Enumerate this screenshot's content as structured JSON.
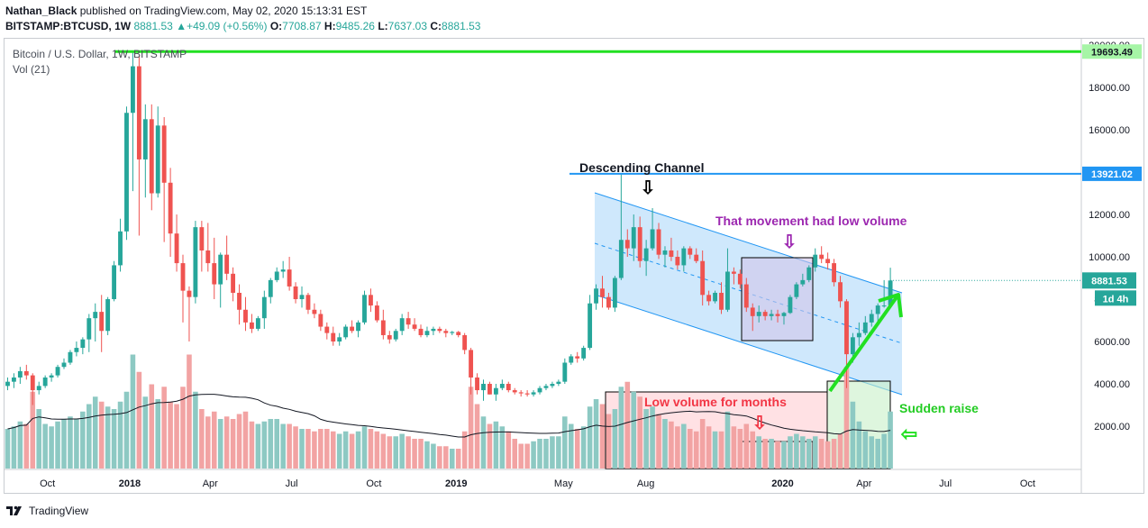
{
  "header": {
    "author": "Nathan_Black",
    "published_text": "published on TradingView.com, May 02, 2020 15:13:31 EST",
    "symbol": "BITSTAMP:BTCUSD, 1W",
    "price": "8881.53",
    "change": "+49.09 (+0.56%)",
    "o_label": "O:",
    "o_value": "7708.87",
    "h_label": "H:",
    "h_value": "9485.26",
    "l_label": "L:",
    "l_value": "7637.03",
    "c_label": "C:",
    "c_value": "8881.53"
  },
  "legend": {
    "title": "Bitcoin / U.S. Dollar, 1W, BITSTAMP",
    "volume": "Vol (21)"
  },
  "footer": {
    "brand": "TradingView"
  },
  "colors": {
    "up": "#26a69a",
    "down": "#ef5350",
    "vol_up": "#8dc9c3",
    "vol_down": "#f2a3a3",
    "green_line": "#22e022",
    "blue_line": "#2196f3",
    "channel_fill": "#bbdefb",
    "purple": "#9c27b0",
    "red_text": "#f23645",
    "arrow_green": "#22e022"
  },
  "annotations": {
    "descending_channel": "Descending Channel",
    "low_volume_movement": "That movement had low volume",
    "low_volume_months": "Low volume for months",
    "sudden_raise": "Sudden raise"
  },
  "price_labels": {
    "high_line": "19693.49",
    "resistance_line": "13921.02",
    "current": "8881.53",
    "countdown": "1d 4h"
  },
  "chart_data": {
    "type": "candlestick",
    "title": "Bitcoin / U.S. Dollar, 1W, BITSTAMP",
    "y_ticks": [
      "2000.00",
      "4000.00",
      "6000.00",
      "8000.00",
      "10000.00",
      "12000.00",
      "14000.00",
      "16000.00",
      "18000.00",
      "20000.00"
    ],
    "y_range": [
      0,
      20300
    ],
    "x_ticks": [
      "Oct",
      "2018",
      "Apr",
      "Jul",
      "Oct",
      "2019",
      "May",
      "Aug",
      "2020",
      "Apr",
      "Jul",
      "Oct"
    ],
    "x_range": [
      "2017-08-14",
      "2020-11-30"
    ],
    "x_tick_dates": [
      "2017-10-01",
      "2018-01-01",
      "2018-04-01",
      "2018-07-01",
      "2018-10-01",
      "2019-01-01",
      "2019-05-01",
      "2019-08-01",
      "2020-01-01",
      "2020-04-01",
      "2020-07-01",
      "2020-10-01"
    ],
    "horizontal_lines": [
      {
        "label": "19693.49",
        "value": 19693.49,
        "color": "#22e022"
      },
      {
        "label": "13921.02",
        "value": 13921.02,
        "color": "#2196f3"
      }
    ],
    "candles": [
      {
        "o": 3900,
        "h": 4300,
        "l": 3700,
        "c": 4100,
        "v": 1600
      },
      {
        "o": 4100,
        "h": 4500,
        "l": 3800,
        "c": 4300,
        "v": 1700
      },
      {
        "o": 4300,
        "h": 4800,
        "l": 4000,
        "c": 4600,
        "v": 1900
      },
      {
        "o": 4600,
        "h": 4900,
        "l": 4200,
        "c": 4400,
        "v": 1800
      },
      {
        "o": 4400,
        "h": 4500,
        "l": 3000,
        "c": 3700,
        "v": 3100
      },
      {
        "o": 3700,
        "h": 4100,
        "l": 3500,
        "c": 3900,
        "v": 2400
      },
      {
        "o": 3900,
        "h": 4400,
        "l": 3800,
        "c": 4300,
        "v": 1800
      },
      {
        "o": 4300,
        "h": 4500,
        "l": 4100,
        "c": 4400,
        "v": 1700
      },
      {
        "o": 4400,
        "h": 4900,
        "l": 4300,
        "c": 4800,
        "v": 1900
      },
      {
        "o": 4800,
        "h": 5200,
        "l": 4700,
        "c": 5000,
        "v": 2000
      },
      {
        "o": 5000,
        "h": 5600,
        "l": 4900,
        "c": 5500,
        "v": 2100
      },
      {
        "o": 5500,
        "h": 6000,
        "l": 5300,
        "c": 5700,
        "v": 2000
      },
      {
        "o": 5700,
        "h": 6200,
        "l": 5400,
        "c": 6100,
        "v": 2300
      },
      {
        "o": 6100,
        "h": 7300,
        "l": 5500,
        "c": 7100,
        "v": 2600
      },
      {
        "o": 7100,
        "h": 7800,
        "l": 6000,
        "c": 7400,
        "v": 2900
      },
      {
        "o": 7400,
        "h": 8200,
        "l": 5500,
        "c": 6500,
        "v": 2700
      },
      {
        "o": 6500,
        "h": 8100,
        "l": 6300,
        "c": 8000,
        "v": 2500
      },
      {
        "o": 8000,
        "h": 9800,
        "l": 7900,
        "c": 9600,
        "v": 2400
      },
      {
        "o": 9600,
        "h": 11800,
        "l": 9300,
        "c": 11200,
        "v": 2700
      },
      {
        "o": 11200,
        "h": 17100,
        "l": 10800,
        "c": 16800,
        "v": 3100
      },
      {
        "o": 16800,
        "h": 19693,
        "l": 13100,
        "c": 19000,
        "v": 4600
      },
      {
        "o": 19000,
        "h": 19500,
        "l": 11000,
        "c": 14600,
        "v": 3900
      },
      {
        "o": 14600,
        "h": 17200,
        "l": 12800,
        "c": 16500,
        "v": 2900
      },
      {
        "o": 16500,
        "h": 17200,
        "l": 12200,
        "c": 13000,
        "v": 3400
      },
      {
        "o": 13000,
        "h": 17100,
        "l": 12800,
        "c": 16200,
        "v": 2800
      },
      {
        "o": 16200,
        "h": 16600,
        "l": 10700,
        "c": 13500,
        "v": 3300
      },
      {
        "o": 13500,
        "h": 14200,
        "l": 10000,
        "c": 11100,
        "v": 2700
      },
      {
        "o": 11100,
        "h": 12000,
        "l": 9300,
        "c": 9700,
        "v": 2600
      },
      {
        "o": 9700,
        "h": 10100,
        "l": 6900,
        "c": 8400,
        "v": 3300
      },
      {
        "o": 8400,
        "h": 8600,
        "l": 6000,
        "c": 8100,
        "v": 4600
      },
      {
        "o": 8100,
        "h": 11700,
        "l": 7800,
        "c": 11400,
        "v": 3100
      },
      {
        "o": 11400,
        "h": 11700,
        "l": 9300,
        "c": 10300,
        "v": 2400
      },
      {
        "o": 10300,
        "h": 11600,
        "l": 9300,
        "c": 9700,
        "v": 2100
      },
      {
        "o": 9700,
        "h": 10900,
        "l": 8000,
        "c": 8700,
        "v": 2300
      },
      {
        "o": 8700,
        "h": 10200,
        "l": 7600,
        "c": 10100,
        "v": 2000
      },
      {
        "o": 10100,
        "h": 11000,
        "l": 8900,
        "c": 9200,
        "v": 2100
      },
      {
        "o": 9200,
        "h": 9500,
        "l": 7900,
        "c": 8300,
        "v": 2000
      },
      {
        "o": 8300,
        "h": 8700,
        "l": 6800,
        "c": 7500,
        "v": 2200
      },
      {
        "o": 7500,
        "h": 8100,
        "l": 6500,
        "c": 6900,
        "v": 2300
      },
      {
        "o": 6900,
        "h": 7300,
        "l": 6400,
        "c": 6600,
        "v": 1900
      },
      {
        "o": 6600,
        "h": 7200,
        "l": 6500,
        "c": 7100,
        "v": 1800
      },
      {
        "o": 7100,
        "h": 8400,
        "l": 6600,
        "c": 8100,
        "v": 1900
      },
      {
        "o": 8100,
        "h": 9000,
        "l": 7800,
        "c": 8900,
        "v": 2000
      },
      {
        "o": 8900,
        "h": 9500,
        "l": 8800,
        "c": 9300,
        "v": 2000
      },
      {
        "o": 9300,
        "h": 9800,
        "l": 9000,
        "c": 9400,
        "v": 1800
      },
      {
        "o": 9400,
        "h": 10000,
        "l": 8400,
        "c": 8600,
        "v": 1800
      },
      {
        "o": 8600,
        "h": 8800,
        "l": 7800,
        "c": 8000,
        "v": 1700
      },
      {
        "o": 8000,
        "h": 8600,
        "l": 7600,
        "c": 8200,
        "v": 1600
      },
      {
        "o": 8200,
        "h": 8300,
        "l": 7300,
        "c": 7500,
        "v": 1600
      },
      {
        "o": 7500,
        "h": 7800,
        "l": 7100,
        "c": 7300,
        "v": 1500
      },
      {
        "o": 7300,
        "h": 7500,
        "l": 6500,
        "c": 6700,
        "v": 1600
      },
      {
        "o": 6700,
        "h": 6900,
        "l": 6100,
        "c": 6400,
        "v": 1600
      },
      {
        "o": 6400,
        "h": 6700,
        "l": 5800,
        "c": 6000,
        "v": 1500
      },
      {
        "o": 6000,
        "h": 6400,
        "l": 5800,
        "c": 6200,
        "v": 1400
      },
      {
        "o": 6200,
        "h": 6800,
        "l": 6100,
        "c": 6700,
        "v": 1500
      },
      {
        "o": 6700,
        "h": 7000,
        "l": 6400,
        "c": 6500,
        "v": 1400
      },
      {
        "o": 6500,
        "h": 7000,
        "l": 6200,
        "c": 6900,
        "v": 1500
      },
      {
        "o": 6900,
        "h": 8400,
        "l": 6800,
        "c": 8200,
        "v": 1700
      },
      {
        "o": 8200,
        "h": 8500,
        "l": 7400,
        "c": 7700,
        "v": 1600
      },
      {
        "o": 7700,
        "h": 7900,
        "l": 6900,
        "c": 7000,
        "v": 1500
      },
      {
        "o": 7000,
        "h": 7500,
        "l": 6100,
        "c": 6300,
        "v": 1400
      },
      {
        "o": 6300,
        "h": 6500,
        "l": 5900,
        "c": 6100,
        "v": 1300
      },
      {
        "o": 6100,
        "h": 6600,
        "l": 6000,
        "c": 6500,
        "v": 1300
      },
      {
        "o": 6500,
        "h": 7300,
        "l": 6300,
        "c": 7100,
        "v": 1400
      },
      {
        "o": 7100,
        "h": 7400,
        "l": 6600,
        "c": 6800,
        "v": 1300
      },
      {
        "o": 6800,
        "h": 7100,
        "l": 6500,
        "c": 6600,
        "v": 1200
      },
      {
        "o": 6600,
        "h": 6800,
        "l": 6200,
        "c": 6300,
        "v": 1200
      },
      {
        "o": 6300,
        "h": 6700,
        "l": 6200,
        "c": 6500,
        "v": 1100
      },
      {
        "o": 6500,
        "h": 6700,
        "l": 6300,
        "c": 6600,
        "v": 1000
      },
      {
        "o": 6600,
        "h": 6700,
        "l": 6400,
        "c": 6500,
        "v": 900
      },
      {
        "o": 6500,
        "h": 6600,
        "l": 6200,
        "c": 6400,
        "v": 900
      },
      {
        "o": 6400,
        "h": 6500,
        "l": 6300,
        "c": 6450,
        "v": 800
      },
      {
        "o": 6450,
        "h": 6500,
        "l": 6200,
        "c": 6300,
        "v": 800
      },
      {
        "o": 6300,
        "h": 6400,
        "l": 5400,
        "c": 5600,
        "v": 1500
      },
      {
        "o": 5600,
        "h": 5700,
        "l": 3500,
        "c": 4300,
        "v": 3300
      },
      {
        "o": 4300,
        "h": 4500,
        "l": 3500,
        "c": 3700,
        "v": 2600
      },
      {
        "o": 3700,
        "h": 4200,
        "l": 3200,
        "c": 4000,
        "v": 2100
      },
      {
        "o": 4000,
        "h": 4100,
        "l": 3500,
        "c": 3500,
        "v": 1800
      },
      {
        "o": 3500,
        "h": 4000,
        "l": 3200,
        "c": 3800,
        "v": 1900
      },
      {
        "o": 3800,
        "h": 4200,
        "l": 3700,
        "c": 4000,
        "v": 1700
      },
      {
        "o": 4000,
        "h": 4100,
        "l": 3600,
        "c": 3700,
        "v": 1500
      },
      {
        "o": 3700,
        "h": 3800,
        "l": 3500,
        "c": 3600,
        "v": 1200
      },
      {
        "o": 3600,
        "h": 3700,
        "l": 3400,
        "c": 3550,
        "v": 1000
      },
      {
        "o": 3550,
        "h": 3700,
        "l": 3400,
        "c": 3500,
        "v": 1000
      },
      {
        "o": 3500,
        "h": 3700,
        "l": 3400,
        "c": 3600,
        "v": 1100
      },
      {
        "o": 3600,
        "h": 3900,
        "l": 3500,
        "c": 3800,
        "v": 1200
      },
      {
        "o": 3800,
        "h": 4000,
        "l": 3700,
        "c": 3900,
        "v": 1200
      },
      {
        "o": 3900,
        "h": 4100,
        "l": 3800,
        "c": 4000,
        "v": 1300
      },
      {
        "o": 4000,
        "h": 4200,
        "l": 3900,
        "c": 4100,
        "v": 1300
      },
      {
        "o": 4100,
        "h": 5200,
        "l": 4000,
        "c": 5000,
        "v": 2100
      },
      {
        "o": 5000,
        "h": 5400,
        "l": 4900,
        "c": 5300,
        "v": 1800
      },
      {
        "o": 5300,
        "h": 5500,
        "l": 5000,
        "c": 5200,
        "v": 1600
      },
      {
        "o": 5200,
        "h": 5800,
        "l": 5100,
        "c": 5700,
        "v": 1700
      },
      {
        "o": 5700,
        "h": 8200,
        "l": 5600,
        "c": 7800,
        "v": 2500
      },
      {
        "o": 7800,
        "h": 8700,
        "l": 7500,
        "c": 8500,
        "v": 2800
      },
      {
        "o": 8500,
        "h": 9100,
        "l": 7600,
        "c": 8100,
        "v": 2600
      },
      {
        "o": 8100,
        "h": 8300,
        "l": 7500,
        "c": 7600,
        "v": 2200
      },
      {
        "o": 7600,
        "h": 9100,
        "l": 7400,
        "c": 9000,
        "v": 2400
      },
      {
        "o": 9000,
        "h": 13900,
        "l": 8900,
        "c": 10800,
        "v": 3300
      },
      {
        "o": 10800,
        "h": 11300,
        "l": 10000,
        "c": 10400,
        "v": 3500
      },
      {
        "o": 10400,
        "h": 12000,
        "l": 9800,
        "c": 11400,
        "v": 3100
      },
      {
        "o": 11400,
        "h": 11900,
        "l": 9500,
        "c": 9800,
        "v": 2900
      },
      {
        "o": 9800,
        "h": 10800,
        "l": 9100,
        "c": 10400,
        "v": 2400
      },
      {
        "o": 10400,
        "h": 12300,
        "l": 10300,
        "c": 11300,
        "v": 2500
      },
      {
        "o": 11300,
        "h": 11600,
        "l": 9900,
        "c": 10100,
        "v": 2200
      },
      {
        "o": 10100,
        "h": 10500,
        "l": 9500,
        "c": 10300,
        "v": 2000
      },
      {
        "o": 10300,
        "h": 10900,
        "l": 9800,
        "c": 10000,
        "v": 1900
      },
      {
        "o": 10000,
        "h": 10300,
        "l": 9400,
        "c": 9600,
        "v": 1700
      },
      {
        "o": 9600,
        "h": 10500,
        "l": 9300,
        "c": 10400,
        "v": 1800
      },
      {
        "o": 10400,
        "h": 10500,
        "l": 9900,
        "c": 10100,
        "v": 1600
      },
      {
        "o": 10100,
        "h": 10400,
        "l": 9700,
        "c": 9800,
        "v": 1500
      },
      {
        "o": 9800,
        "h": 10300,
        "l": 7700,
        "c": 8200,
        "v": 2000
      },
      {
        "o": 8200,
        "h": 8400,
        "l": 7700,
        "c": 7900,
        "v": 1700
      },
      {
        "o": 7900,
        "h": 8400,
        "l": 7800,
        "c": 8300,
        "v": 1500
      },
      {
        "o": 8300,
        "h": 8800,
        "l": 7300,
        "c": 7500,
        "v": 1500
      },
      {
        "o": 7500,
        "h": 10400,
        "l": 7400,
        "c": 9300,
        "v": 2300
      },
      {
        "o": 9300,
        "h": 9500,
        "l": 8700,
        "c": 9200,
        "v": 1700
      },
      {
        "o": 9200,
        "h": 9400,
        "l": 8500,
        "c": 8700,
        "v": 1600
      },
      {
        "o": 8700,
        "h": 9000,
        "l": 7400,
        "c": 7600,
        "v": 1800
      },
      {
        "o": 7600,
        "h": 7800,
        "l": 6500,
        "c": 7200,
        "v": 1500
      },
      {
        "o": 7200,
        "h": 7700,
        "l": 6900,
        "c": 7400,
        "v": 1300
      },
      {
        "o": 7400,
        "h": 7500,
        "l": 7000,
        "c": 7200,
        "v": 1200
      },
      {
        "o": 7200,
        "h": 7500,
        "l": 7000,
        "c": 7300,
        "v": 1200
      },
      {
        "o": 7300,
        "h": 7500,
        "l": 6900,
        "c": 7200,
        "v": 1100
      },
      {
        "o": 7200,
        "h": 7400,
        "l": 6800,
        "c": 7350,
        "v": 1100
      },
      {
        "o": 7350,
        "h": 8200,
        "l": 7300,
        "c": 8100,
        "v": 1300
      },
      {
        "o": 8100,
        "h": 8800,
        "l": 8000,
        "c": 8700,
        "v": 1400
      },
      {
        "o": 8700,
        "h": 9200,
        "l": 8600,
        "c": 8900,
        "v": 1300
      },
      {
        "o": 8900,
        "h": 9600,
        "l": 8800,
        "c": 9500,
        "v": 1200
      },
      {
        "o": 9500,
        "h": 10400,
        "l": 9300,
        "c": 10100,
        "v": 1300
      },
      {
        "o": 10100,
        "h": 10500,
        "l": 9700,
        "c": 9900,
        "v": 1200
      },
      {
        "o": 9900,
        "h": 10200,
        "l": 9400,
        "c": 9700,
        "v": 1100
      },
      {
        "o": 9700,
        "h": 9900,
        "l": 8600,
        "c": 8800,
        "v": 1200
      },
      {
        "o": 8800,
        "h": 9100,
        "l": 7600,
        "c": 7900,
        "v": 1400
      },
      {
        "o": 7900,
        "h": 8000,
        "l": 3800,
        "c": 5400,
        "v": 4100
      },
      {
        "o": 5400,
        "h": 6400,
        "l": 5000,
        "c": 6200,
        "v": 2700
      },
      {
        "o": 6200,
        "h": 6900,
        "l": 5800,
        "c": 6400,
        "v": 1900
      },
      {
        "o": 6400,
        "h": 7200,
        "l": 6300,
        "c": 6900,
        "v": 1500
      },
      {
        "o": 6900,
        "h": 7500,
        "l": 6700,
        "c": 7300,
        "v": 1300
      },
      {
        "o": 7300,
        "h": 7800,
        "l": 6900,
        "c": 7700,
        "v": 1200
      },
      {
        "o": 7700,
        "h": 8900,
        "l": 7600,
        "c": 7700,
        "v": 1400
      },
      {
        "o": 7708.87,
        "h": 9485.26,
        "l": 7637.03,
        "c": 8881.53,
        "v": 2300
      }
    ],
    "volume_ma": "Vol (21)"
  }
}
